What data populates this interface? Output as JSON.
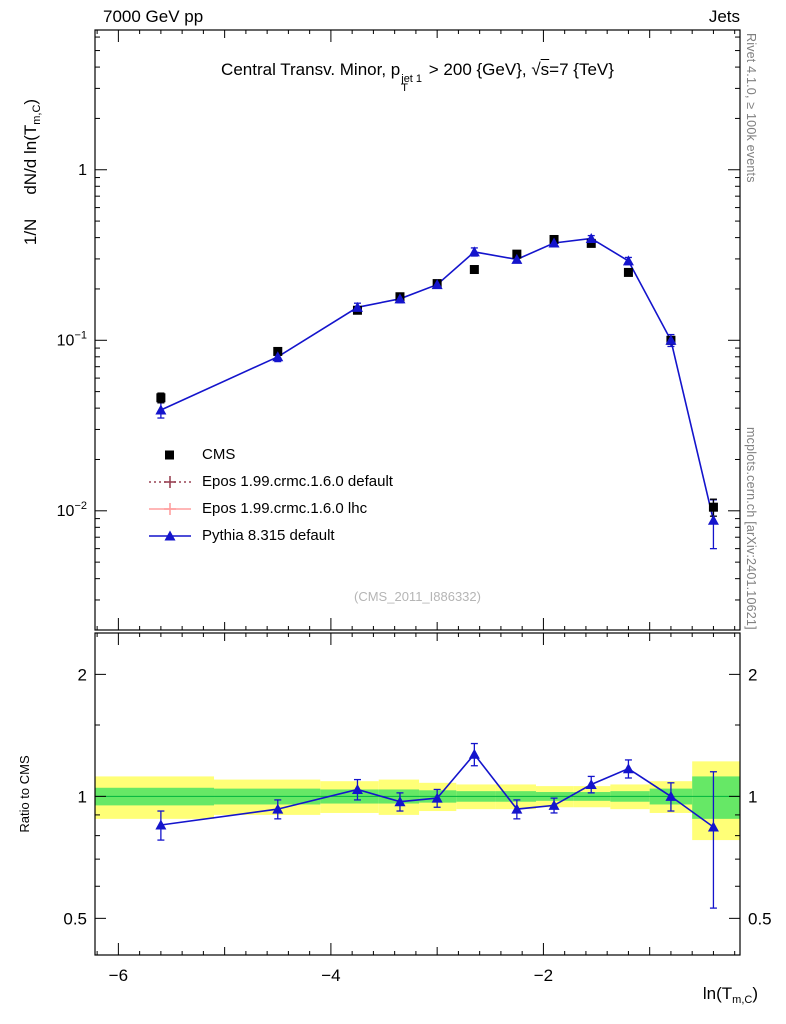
{
  "header": {
    "left": "7000 GeV pp",
    "right": "Jets"
  },
  "main_title": {
    "seg1": "Central Transv. Minor, p",
    "sup": "jet 1",
    "sub": "T",
    "seg2": " > 200 {GeV}, ",
    "sqrt": "√",
    "sqrt_arg": "s",
    "seg3": "=7 {TeV}"
  },
  "axis_labels": {
    "y_main_start": "1/N",
    "y_main_mid": "dN/d ln(T",
    "y_main_sub": "m,C",
    "y_main_end": ")",
    "ratio": "Ratio to CMS",
    "x_pre": "ln(T",
    "x_sub": "m,C",
    "x_post": ")"
  },
  "side_notes": {
    "top": "Rivet 4.1.0, ≥ 100k events",
    "bottom": "mcplots.cern.ch [arXiv:2401.10621]"
  },
  "watermark": "(CMS_2011_I886332)",
  "legend": [
    {
      "label": "CMS",
      "marker": "square",
      "line": "none",
      "color": "#000000"
    },
    {
      "label": "Epos 1.99.crmc.1.6.0 default",
      "marker": "cross",
      "line": "dotted",
      "color": "#994455"
    },
    {
      "label": "Epos 1.99.crmc.1.6.0 lhc",
      "marker": "cross",
      "line": "solid",
      "color": "#ff9f9f"
    },
    {
      "label": "Pythia 8.315 default",
      "marker": "triangle",
      "line": "solid",
      "color": "#1414cc"
    }
  ],
  "chart_data": [
    {
      "type": "line",
      "title": "Central Transv. Minor, pT(jet 1) > 200 GeV, sqrt(s)=7 TeV",
      "xlabel": "ln(T_m,C)",
      "ylabel": "1/N dN/d ln(T_m,C)",
      "yscale": "log",
      "xlim": [
        -6.22,
        -0.15
      ],
      "ylim": [
        0.002,
        6.6
      ],
      "xticks": [
        -6,
        -4,
        -2
      ],
      "xticks_medium": [
        -5,
        -3,
        -1
      ],
      "yticks": [
        {
          "v": 1,
          "base": "1",
          "exp": ""
        },
        {
          "v": 0.1,
          "base": "10",
          "exp": "−1"
        },
        {
          "v": 0.01,
          "base": "10",
          "exp": "−2"
        }
      ],
      "x": [
        -5.6,
        -4.5,
        -3.75,
        -3.35,
        -3.0,
        -2.65,
        -2.25,
        -1.9,
        -1.55,
        -1.2,
        -0.8,
        -0.4
      ],
      "series": [
        {
          "name": "CMS",
          "color": "#000000",
          "values": [
            0.046,
            0.086,
            0.15,
            0.18,
            0.215,
            0.26,
            0.32,
            0.39,
            0.37,
            0.25,
            0.1,
            0.0105
          ],
          "yerr": [
            0.003,
            0.004,
            0.006,
            0.007,
            0.008,
            0.009,
            0.011,
            0.012,
            0.012,
            0.009,
            0.005,
            0.0012
          ]
        },
        {
          "name": "Pythia 8.315 default",
          "color": "#1414cc",
          "values": [
            0.039,
            0.08,
            0.156,
            0.175,
            0.212,
            0.33,
            0.298,
            0.372,
            0.395,
            0.292,
            0.1,
            0.0088
          ],
          "yerr": [
            0.004,
            0.005,
            0.009,
            0.009,
            0.01,
            0.018,
            0.013,
            0.014,
            0.016,
            0.014,
            0.008,
            0.0028
          ]
        }
      ],
      "legend_position": "inside-left"
    },
    {
      "type": "line",
      "ylabel": "Ratio to CMS",
      "yscale": "log",
      "ylim": [
        0.406,
        2.53
      ],
      "yticks": [
        0.5,
        1,
        2
      ],
      "yminor": [
        0.6,
        0.7,
        0.8,
        0.9,
        1.5
      ],
      "x": [
        -5.6,
        -4.5,
        -3.75,
        -3.35,
        -3.0,
        -2.65,
        -2.25,
        -1.9,
        -1.55,
        -1.2,
        -0.8,
        -0.4
      ],
      "series": [
        {
          "name": "Pythia 8.315 default / CMS",
          "color": "#1414cc",
          "values": [
            0.85,
            0.93,
            1.04,
            0.97,
            0.99,
            1.27,
            0.93,
            0.95,
            1.07,
            1.17,
            1.0,
            0.84
          ],
          "yerr": [
            0.07,
            0.05,
            0.06,
            0.05,
            0.05,
            0.08,
            0.05,
            0.04,
            0.05,
            0.06,
            0.08,
            0.31
          ]
        }
      ],
      "bands": {
        "edges": [
          -6.22,
          -5.1,
          -4.1,
          -3.55,
          -3.17,
          -2.82,
          -2.45,
          -2.07,
          -1.72,
          -1.37,
          -1.0,
          -0.6,
          -0.15
        ],
        "yellow_half": [
          0.12,
          0.1,
          0.09,
          0.1,
          0.08,
          0.07,
          0.07,
          0.06,
          0.06,
          0.07,
          0.09,
          0.22
        ],
        "green_half": [
          0.05,
          0.045,
          0.04,
          0.04,
          0.035,
          0.03,
          0.03,
          0.025,
          0.025,
          0.03,
          0.045,
          0.12
        ],
        "yellow_color": "#ffff77",
        "green_color": "#66e866",
        "center_color": "#00b33c"
      }
    }
  ]
}
